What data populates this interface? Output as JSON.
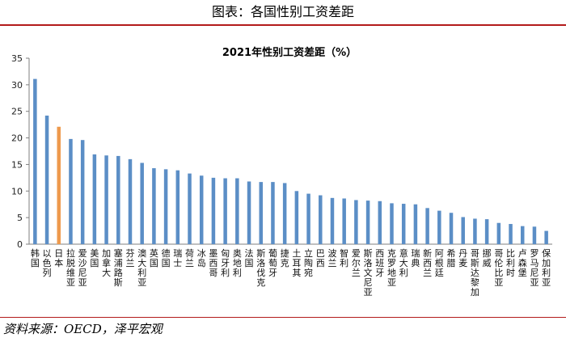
{
  "page": {
    "title": "图表：各国性别工资差距",
    "source": "资料来源：OECD，泽平宏观"
  },
  "colors": {
    "bar": "#5b8ec6",
    "bar_highlight": "#ee9a4d",
    "rule": "#b31b1b",
    "axis": "#7f7f7f"
  },
  "chart_data": {
    "type": "bar",
    "title": "2021年性别工资差距（%）",
    "xlabel": "",
    "ylabel": "",
    "ylim": [
      0,
      35
    ],
    "yticks": [
      0,
      5,
      10,
      15,
      20,
      25,
      30,
      35
    ],
    "grid": false,
    "highlight_category": "日本",
    "categories": [
      "韩国",
      "以色列",
      "日本",
      "拉脱维亚",
      "爱沙尼亚",
      "美国",
      "加拿大",
      "塞浦路斯",
      "芬兰",
      "澳大利亚",
      "英国",
      "德国",
      "瑞士",
      "荷兰",
      "冰岛",
      "墨西哥",
      "匈牙利",
      "奥地利",
      "法国",
      "斯洛伐克",
      "葡萄牙",
      "捷克",
      "土耳其",
      "立陶宛",
      "巴西",
      "波兰",
      "智利",
      "爱尔兰",
      "斯洛文尼亚",
      "西班牙",
      "克罗地亚",
      "意大利",
      "瑞典",
      "新西兰",
      "阿根廷",
      "希腊",
      "丹麦",
      "哥斯达黎加",
      "挪威",
      "哥伦比亚",
      "比利时",
      "卢森堡",
      "罗马尼亚",
      "保加利亚"
    ],
    "values": [
      31.1,
      24.2,
      22.1,
      19.8,
      19.6,
      16.9,
      16.7,
      16.6,
      16.0,
      15.3,
      14.3,
      14.1,
      13.9,
      13.3,
      12.9,
      12.5,
      12.4,
      12.4,
      11.8,
      11.7,
      11.7,
      11.5,
      10.0,
      9.5,
      9.2,
      8.7,
      8.6,
      8.3,
      8.2,
      8.1,
      7.7,
      7.6,
      7.5,
      6.8,
      6.3,
      5.9,
      5.1,
      4.8,
      4.7,
      4.0,
      3.8,
      3.4,
      3.3,
      2.5
    ]
  }
}
